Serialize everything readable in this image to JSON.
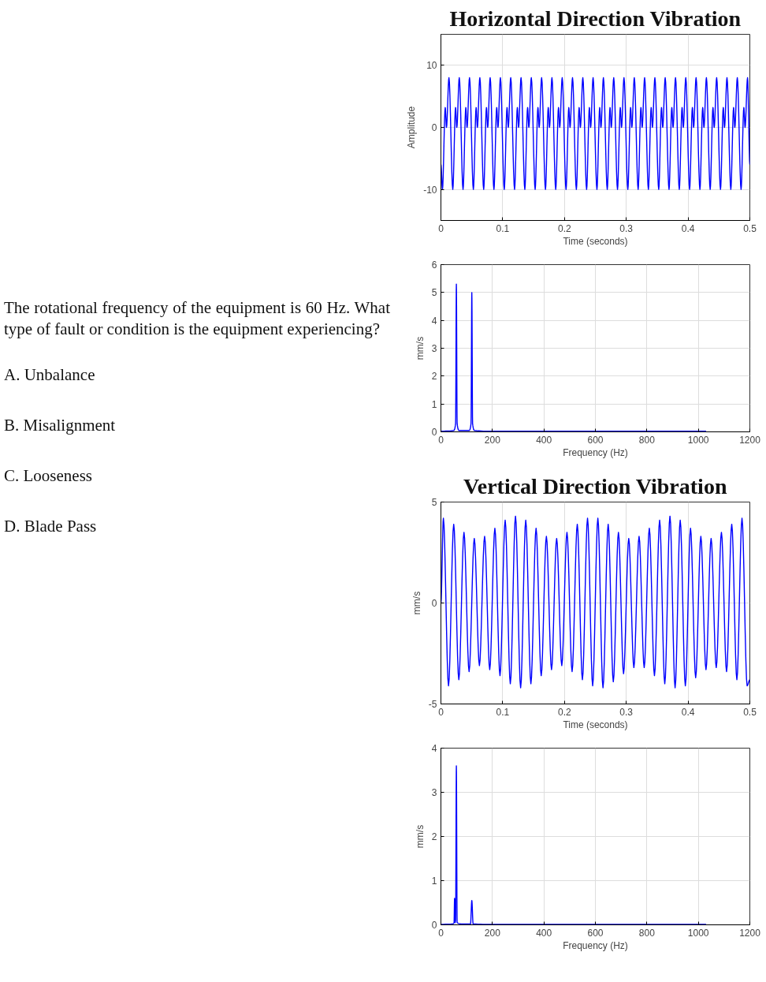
{
  "chart_data": [
    {
      "type": "other",
      "annotations": [
        "The rotational frequency of the equipment is 60 Hz. What type of fault or condition is the equipment experiencing?",
        "A. Unbalance",
        "B. Misalignment",
        "C. Looseness",
        "D. Blade Pass"
      ]
    },
    {
      "type": "line",
      "title": "Horizontal Direction Vibration",
      "xlabel": "Time (seconds)",
      "ylabel": "Amplitude",
      "xlim": [
        0,
        0.5
      ],
      "ylim": [
        -15,
        15
      ],
      "xticks": [
        0,
        0.1,
        0.2,
        0.3,
        0.4,
        0.5
      ],
      "yticks": [
        -10,
        0,
        10
      ],
      "grid": true,
      "series": [
        {
          "color": "#0000ff",
          "x": [
            0,
            0.0025,
            0.007,
            0.009,
            0.013,
            0.0192,
            0.0237,
            0.0257,
            0.0297,
            0.0358,
            0.0403,
            0.0423,
            0.0463,
            0.0525,
            0.057,
            0.059,
            0.063,
            0.0692,
            0.0737,
            0.0757,
            0.0797,
            0.0858,
            0.0903,
            0.0923,
            0.0963,
            0.1025,
            0.107,
            0.109,
            0.113,
            0.1192,
            0.1237,
            0.1257,
            0.1297,
            0.1358,
            0.1403,
            0.1423,
            0.1463,
            0.1525,
            0.157,
            0.159,
            0.163,
            0.1692,
            0.1737,
            0.1757,
            0.1797,
            0.1858,
            0.1903,
            0.1923,
            0.1963,
            0.2025,
            0.207,
            0.209,
            0.213,
            0.2192,
            0.2237,
            0.2257,
            0.2297,
            0.2358,
            0.2403,
            0.2423,
            0.2463,
            0.2525,
            0.257,
            0.259,
            0.263,
            0.2692,
            0.2737,
            0.2757,
            0.2797,
            0.2858,
            0.2903,
            0.2923,
            0.2963,
            0.3025,
            0.307,
            0.309,
            0.313,
            0.3192,
            0.3237,
            0.3257,
            0.3297,
            0.3358,
            0.3403,
            0.3423,
            0.3463,
            0.3525,
            0.357,
            0.359,
            0.363,
            0.3692,
            0.3737,
            0.3757,
            0.3797,
            0.3858,
            0.3903,
            0.3923,
            0.3963,
            0.4025,
            0.407,
            0.409,
            0.413,
            0.4192,
            0.4237,
            0.4257,
            0.4297,
            0.4358,
            0.4403,
            0.4423,
            0.4463,
            0.4525,
            0.457,
            0.459,
            0.463,
            0.4692,
            0.4737,
            0.4757,
            0.4797,
            0.4858,
            0.4903,
            0.4923,
            0.4963,
            0.5
          ],
          "values": [
            -6,
            -10,
            3.2,
            0,
            8,
            -10,
            3.2,
            0,
            8,
            -10,
            3.2,
            0,
            8,
            -10,
            3.2,
            0,
            8,
            -10,
            3.2,
            0,
            8,
            -10,
            3.2,
            0,
            8,
            -10,
            3.2,
            0,
            8,
            -10,
            3.2,
            0,
            8,
            -10,
            3.2,
            0,
            8,
            -10,
            3.2,
            0,
            8,
            -10,
            3.2,
            0,
            8,
            -10,
            3.2,
            0,
            8,
            -10,
            3.2,
            0,
            8,
            -10,
            3.2,
            0,
            8,
            -10,
            3.2,
            0,
            8,
            -10,
            3.2,
            0,
            8,
            -10,
            3.2,
            0,
            8,
            -10,
            3.2,
            0,
            8,
            -10,
            3.2,
            0,
            8,
            -10,
            3.2,
            0,
            8,
            -10,
            3.2,
            0,
            8,
            -10,
            3.2,
            0,
            8,
            -10,
            3.2,
            0,
            8,
            -10,
            3.2,
            0,
            8,
            -10,
            3.2,
            0,
            8,
            -10,
            3.2,
            0,
            8,
            -10,
            3.2,
            0,
            8,
            -10,
            3.2,
            0,
            8,
            -10,
            3.2,
            0,
            8,
            -10,
            3.2,
            0,
            8,
            -6
          ]
        }
      ]
    },
    {
      "type": "line",
      "xlabel": "Frequency (Hz)",
      "ylabel": "mm/s",
      "xlim": [
        0,
        1200
      ],
      "ylim": [
        0,
        6
      ],
      "xticks": [
        0,
        200,
        400,
        600,
        800,
        1000,
        1200
      ],
      "yticks": [
        0,
        1,
        2,
        3,
        4,
        5,
        6
      ],
      "grid": true,
      "series": [
        {
          "color": "#0000ff",
          "x": [
            0,
            50,
            57,
            60,
            63,
            70,
            110,
            117,
            120,
            123,
            130,
            200,
            1030
          ],
          "values": [
            0.02,
            0.05,
            0.3,
            5.3,
            0.3,
            0.05,
            0.05,
            0.3,
            5.0,
            0.3,
            0.05,
            0.02,
            0.02
          ]
        }
      ]
    },
    {
      "type": "line",
      "title": "Vertical Direction Vibration",
      "xlabel": "Time (seconds)",
      "ylabel": "mm/s",
      "xlim": [
        0,
        0.5
      ],
      "ylim": [
        -5,
        5
      ],
      "xticks": [
        0,
        0.1,
        0.2,
        0.3,
        0.4,
        0.5
      ],
      "yticks": [
        -5,
        0,
        5
      ],
      "grid": true,
      "series": [
        {
          "color": "#0000ff",
          "x": [
            0,
            0.004,
            0.0123,
            0.0207,
            0.029,
            0.0373,
            0.0456,
            0.054,
            0.0623,
            0.0707,
            0.079,
            0.0873,
            0.0956,
            0.104,
            0.1123,
            0.1207,
            0.129,
            0.1373,
            0.1456,
            0.154,
            0.1623,
            0.1707,
            0.179,
            0.1873,
            0.1956,
            0.204,
            0.2123,
            0.2207,
            0.229,
            0.2373,
            0.2456,
            0.254,
            0.2623,
            0.2707,
            0.279,
            0.2873,
            0.2956,
            0.304,
            0.3123,
            0.3207,
            0.329,
            0.3373,
            0.3456,
            0.354,
            0.3623,
            0.3707,
            0.379,
            0.3873,
            0.3956,
            0.404,
            0.4123,
            0.4207,
            0.429,
            0.4373,
            0.4456,
            0.454,
            0.4623,
            0.4707,
            0.479,
            0.4873,
            0.4956,
            0.5
          ],
          "values": [
            0,
            4.2,
            -4.1,
            3.9,
            -3.8,
            3.5,
            -3.4,
            3.2,
            -3.1,
            3.3,
            -3.3,
            3.7,
            -3.6,
            4.1,
            -4.0,
            4.3,
            -4.2,
            4.1,
            -4.0,
            3.7,
            -3.6,
            3.3,
            -3.3,
            3.2,
            -3.1,
            3.5,
            -3.4,
            3.9,
            -3.8,
            4.2,
            -4.1,
            4.2,
            -4.2,
            3.9,
            -3.9,
            3.5,
            -3.5,
            3.2,
            -3.2,
            3.3,
            -3.2,
            3.7,
            -3.6,
            4.1,
            -4.0,
            4.3,
            -4.2,
            4.1,
            -4.1,
            3.7,
            -3.7,
            3.3,
            -3.3,
            3.2,
            -3.2,
            3.5,
            -3.4,
            3.9,
            -3.8,
            4.2,
            -4.1,
            -3.8
          ]
        }
      ]
    },
    {
      "type": "line",
      "xlabel": "Frequency (Hz)",
      "ylabel": "mm/s",
      "xlim": [
        0,
        1200
      ],
      "ylim": [
        0,
        4
      ],
      "xticks": [
        0,
        200,
        400,
        600,
        800,
        1000,
        1200
      ],
      "yticks": [
        0,
        1,
        2,
        3,
        4
      ],
      "grid": true,
      "series": [
        {
          "color": "#0000ff",
          "x": [
            0,
            45,
            51,
            53,
            55,
            57,
            60,
            63,
            80,
            115,
            120,
            125,
            200,
            1030
          ],
          "values": [
            0.01,
            0.02,
            0.05,
            0.6,
            0.05,
            0.1,
            3.6,
            0.05,
            0.02,
            0.02,
            0.55,
            0.02,
            0.01,
            0.01
          ]
        }
      ]
    }
  ]
}
